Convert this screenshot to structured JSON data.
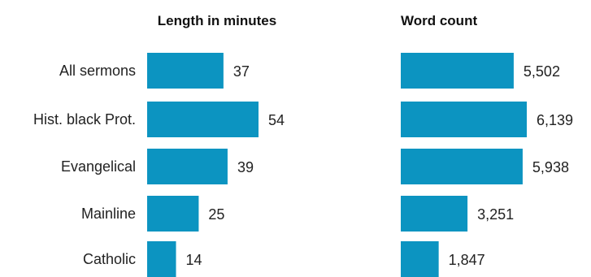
{
  "chart_data": [
    {
      "type": "bar",
      "orientation": "horizontal",
      "title": "Length in minutes",
      "categories": [
        "All sermons",
        "Hist. black Prot.",
        "Evangelical",
        "Mainline",
        "Catholic"
      ],
      "values": [
        37,
        54,
        39,
        25,
        14
      ],
      "value_labels": [
        "37",
        "54",
        "39",
        "25",
        "14"
      ],
      "xlabel": "",
      "ylabel": "",
      "xlim": [
        0,
        54
      ],
      "grid": false,
      "color": "#0c94c1"
    },
    {
      "type": "bar",
      "orientation": "horizontal",
      "title": "Word count",
      "categories": [
        "All sermons",
        "Hist. black Prot.",
        "Evangelical",
        "Mainline",
        "Catholic"
      ],
      "values": [
        5502,
        6139,
        5938,
        3251,
        1847
      ],
      "value_labels": [
        "5,502",
        "6,139",
        "5,938",
        "3,251",
        "1,847"
      ],
      "xlabel": "",
      "ylabel": "",
      "xlim": [
        0,
        6139
      ],
      "grid": false,
      "color": "#0c94c1"
    }
  ]
}
